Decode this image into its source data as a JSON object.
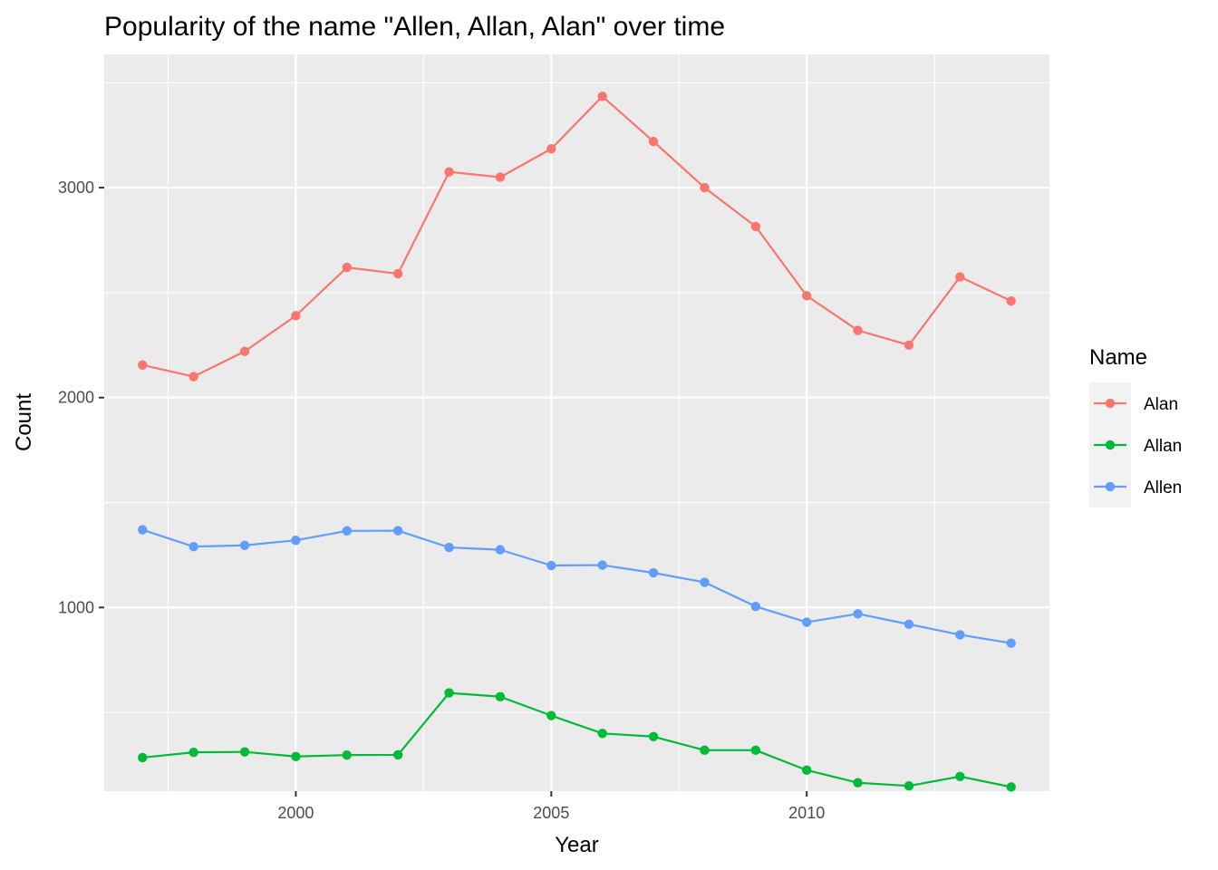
{
  "chart_data": {
    "type": "line",
    "title": "Popularity of the name \"Allen, Allan, Alan\" over time",
    "xlabel": "Year",
    "ylabel": "Count",
    "x": [
      1997,
      1998,
      1999,
      2000,
      2001,
      2002,
      2003,
      2004,
      2005,
      2006,
      2007,
      2008,
      2009,
      2010,
      2011,
      2012,
      2013,
      2014
    ],
    "xlim": [
      1996.25,
      2014.75
    ],
    "ylim": [
      125,
      3635
    ],
    "x_ticks": [
      2000,
      2005,
      2010
    ],
    "y_ticks": [
      1000,
      2000,
      3000
    ],
    "grid": true,
    "legend": {
      "title": "Name",
      "position": "right"
    },
    "series": [
      {
        "name": "Alan",
        "color": "#F8766D",
        "values": [
          2155,
          2100,
          2220,
          2390,
          2620,
          2590,
          3075,
          3050,
          3185,
          3435,
          3220,
          3000,
          2815,
          2485,
          2320,
          2250,
          2575,
          2460
        ]
      },
      {
        "name": "Allan",
        "color": "#00BA38",
        "values": [
          285,
          310,
          312,
          290,
          297,
          298,
          593,
          575,
          485,
          400,
          385,
          320,
          320,
          225,
          165,
          150,
          195,
          145
        ]
      },
      {
        "name": "Allen",
        "color": "#619CFF",
        "values": [
          1370,
          1290,
          1296,
          1320,
          1365,
          1366,
          1286,
          1275,
          1200,
          1202,
          1165,
          1120,
          1005,
          930,
          970,
          920,
          870,
          830
        ]
      }
    ]
  }
}
